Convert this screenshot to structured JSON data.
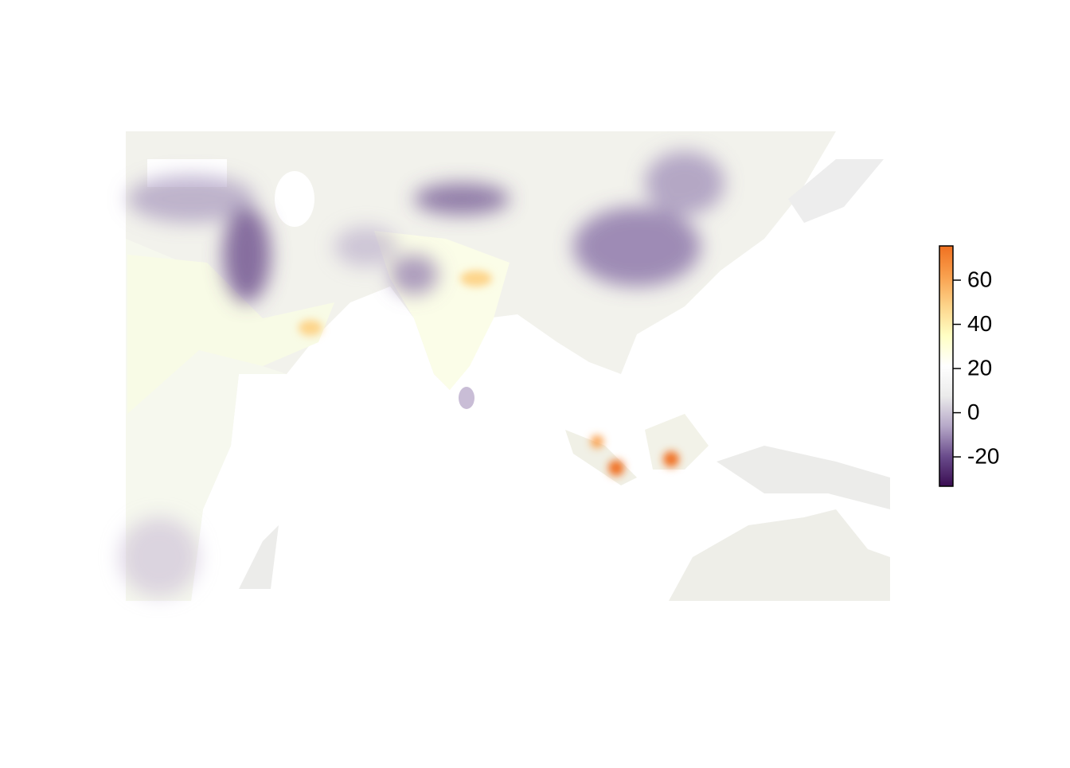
{
  "chart_data": {
    "type": "colorbar",
    "lim": [
      -33.3,
      75.5
    ],
    "ticks": [
      -20,
      0,
      20,
      40,
      60
    ],
    "colors": [
      "#3a0d52",
      "#6a4c8c",
      "#b6a8c8",
      "#ebebeb",
      "#ffffff",
      "#ffffc4",
      "#fdd48a",
      "#f9a04e",
      "#f07020"
    ]
  }
}
